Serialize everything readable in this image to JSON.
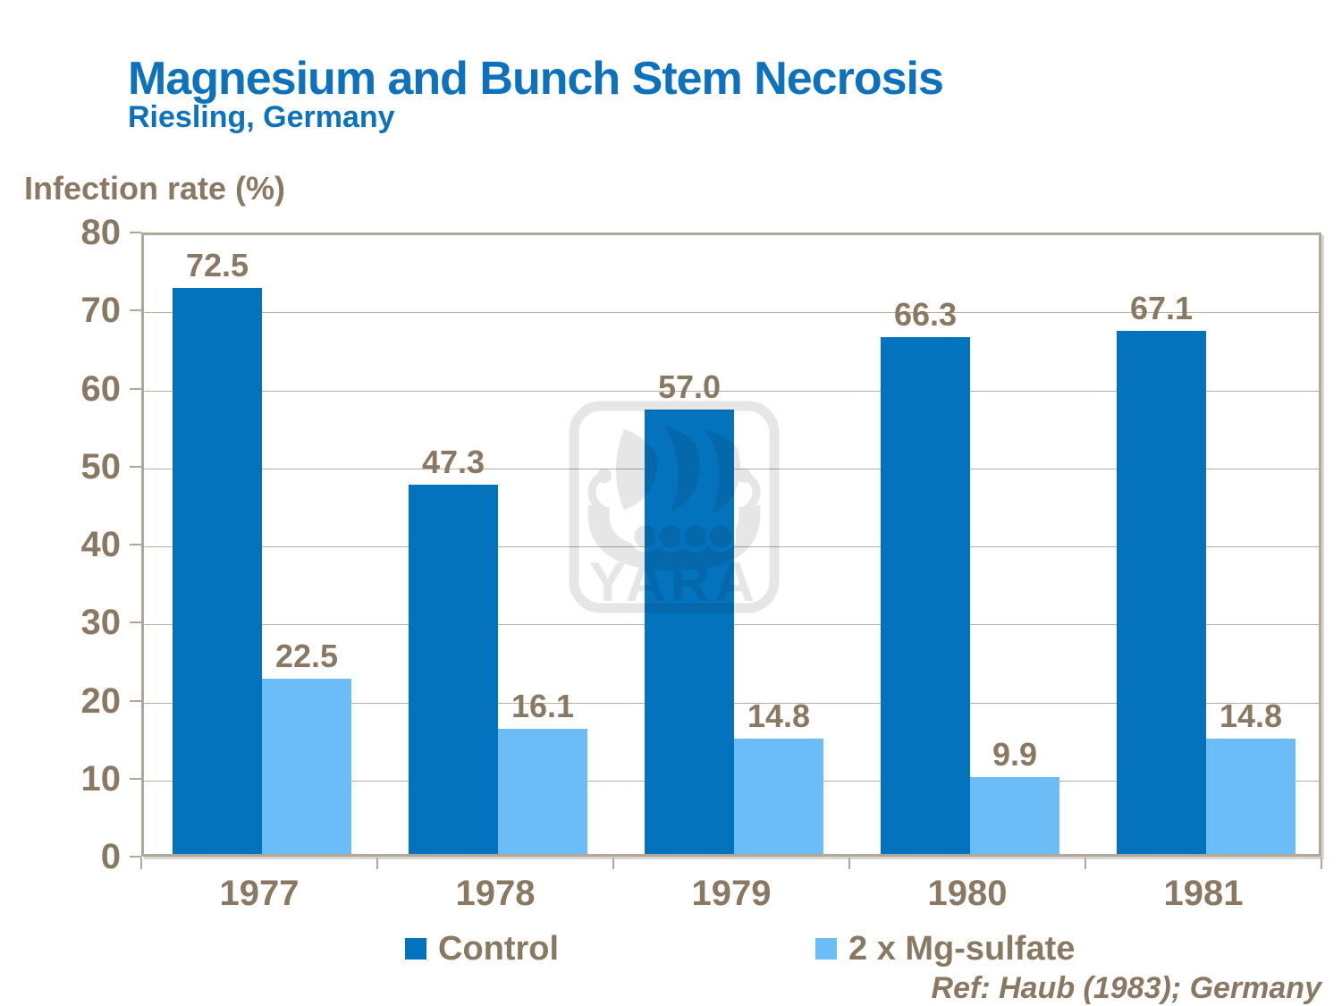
{
  "header": {
    "title": "Magnesium and Bunch Stem Necrosis",
    "subtitle": "Riesling, Germany"
  },
  "chart_data": {
    "type": "bar",
    "title": "Magnesium and Bunch Stem Necrosis",
    "subtitle": "Riesling, Germany",
    "ylabel": "Infection rate (%)",
    "xlabel": "",
    "categories": [
      "1977",
      "1978",
      "1979",
      "1980",
      "1981"
    ],
    "series": [
      {
        "name": "Control",
        "color": "#0473bd",
        "values": [
          72.5,
          47.3,
          57.0,
          66.3,
          67.1
        ]
      },
      {
        "name": "2 x Mg-sulfate",
        "color": "#6cbcf8",
        "values": [
          22.5,
          16.1,
          14.8,
          9.9,
          14.8
        ]
      }
    ],
    "ylim": [
      0,
      80
    ],
    "ytick_step": 10,
    "grid": true,
    "legend_position": "bottom",
    "value_label_decimals": 1
  },
  "footer": {
    "ref": "Ref: Haub (1983); Germany"
  },
  "watermark": {
    "name": "yara-logo",
    "text": "YARA"
  },
  "colors": {
    "title_blue": "#0d71bb",
    "text_brown": "#8a7962",
    "axis_tan": "#b2a79b",
    "gridline_tan": "#b9ad9f",
    "watermark_gray": "#e6e6e6"
  }
}
